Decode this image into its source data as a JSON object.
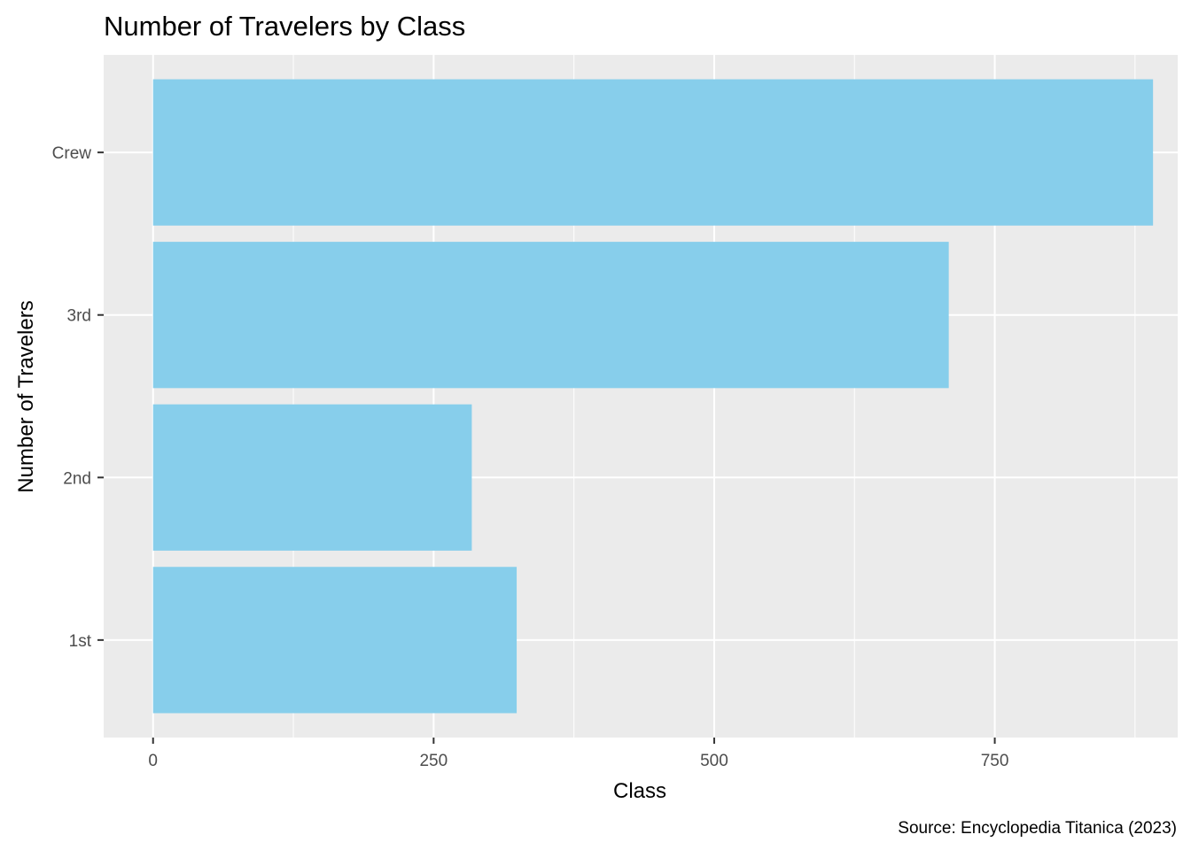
{
  "chart_data": {
    "type": "bar",
    "orientation": "horizontal",
    "title": "Number of Travelers by Class",
    "xlabel": "Class",
    "ylabel": "Number of Travelers",
    "caption": "Source: Encyclopedia Titanica (2023)",
    "categories": [
      "1st",
      "2nd",
      "3rd",
      "Crew"
    ],
    "values": [
      324,
      284,
      709,
      891
    ],
    "xlim": [
      -44,
      913
    ],
    "x_ticks": [
      0,
      250,
      500,
      750
    ],
    "x_tick_labels": [
      "0",
      "250",
      "500",
      "750"
    ],
    "grid": true,
    "bar_color": "#87CEEB",
    "panel_background": "#EBEBEB",
    "grid_color": "#FFFFFF"
  }
}
